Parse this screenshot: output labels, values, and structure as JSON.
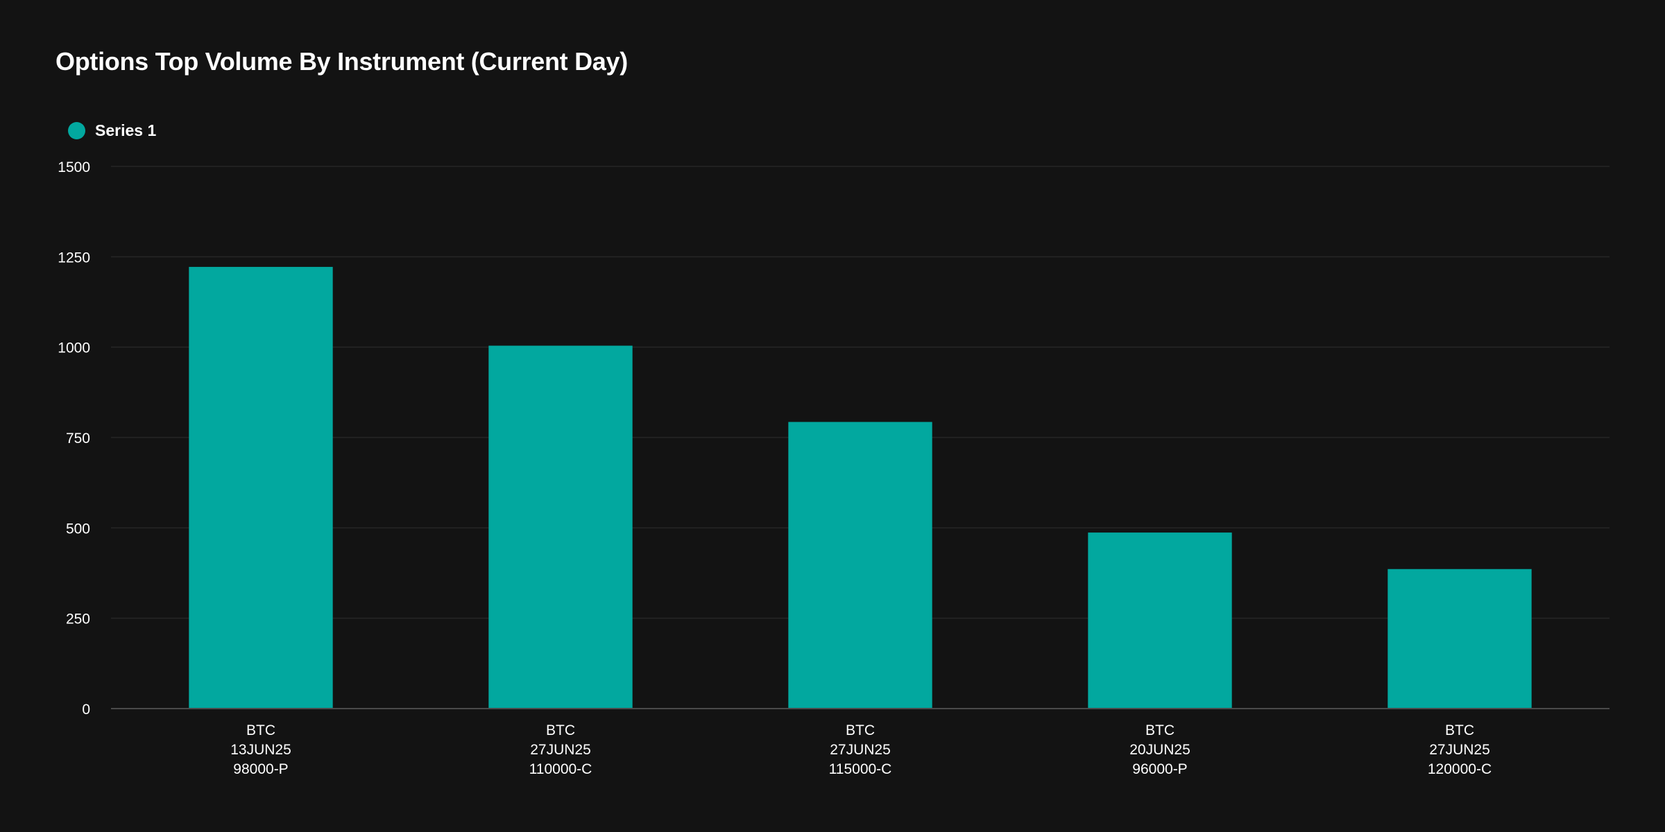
{
  "colors": {
    "background": "#131313",
    "bar": "#02a89f",
    "grid": "#262626",
    "axis": "#4a4a4a"
  },
  "chart_data": {
    "type": "bar",
    "title": "Options Top Volume By Instrument (Current Day)",
    "xlabel": "",
    "ylabel": "",
    "ylim": [
      0,
      1500
    ],
    "yticks": [
      0,
      250,
      500,
      750,
      1000,
      1250,
      1500
    ],
    "grid": true,
    "legend": "top-left",
    "categories": [
      [
        "BTC",
        "13JUN25",
        "98000-P"
      ],
      [
        "BTC",
        "27JUN25",
        "110000-C"
      ],
      [
        "BTC",
        "27JUN25",
        "115000-C"
      ],
      [
        "BTC",
        "20JUN25",
        "96000-P"
      ],
      [
        "BTC",
        "27JUN25",
        "120000-C"
      ]
    ],
    "series": [
      {
        "name": "Series 1",
        "values": [
          1222,
          1004,
          793,
          487,
          386
        ]
      }
    ]
  }
}
